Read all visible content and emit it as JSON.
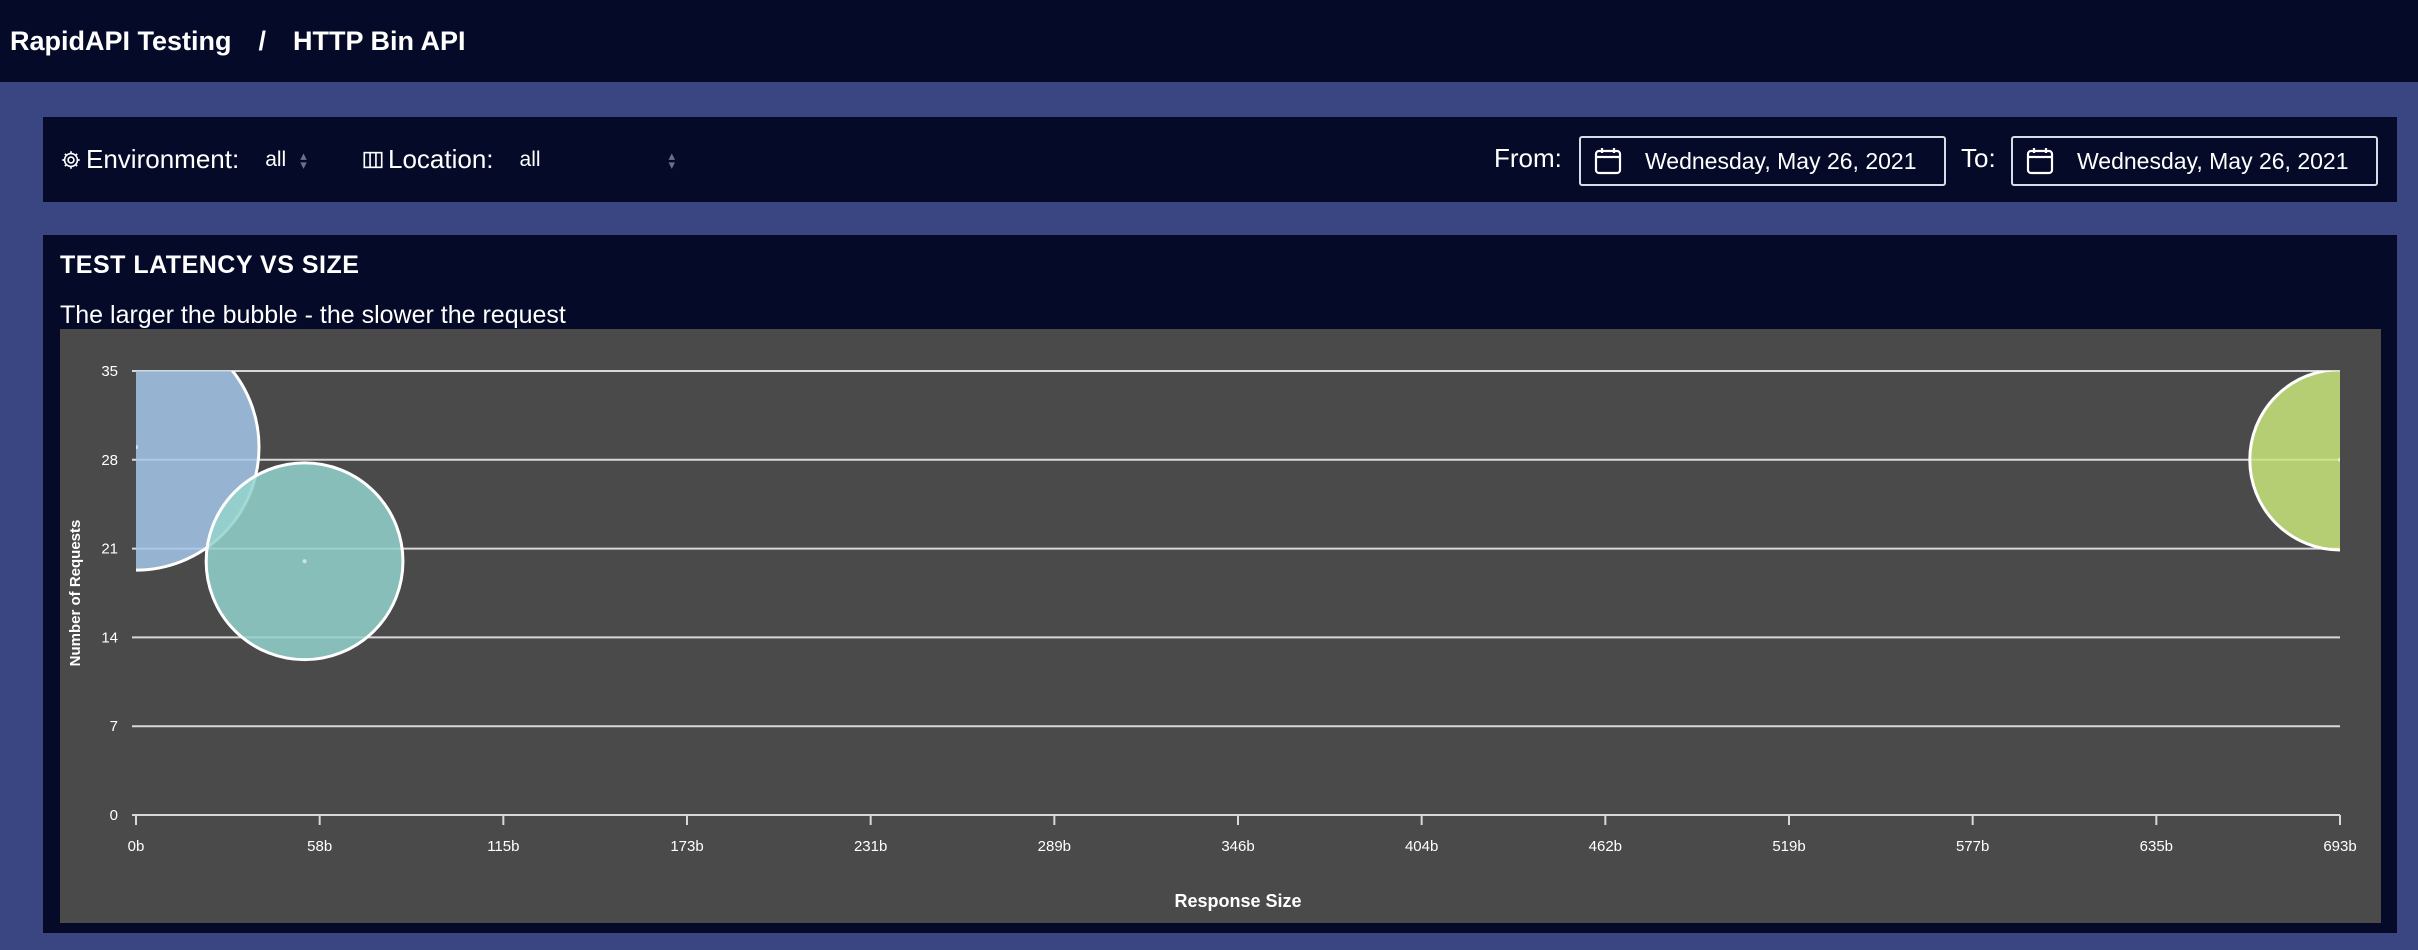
{
  "header": {
    "breadcrumb_root": "RapidAPI Testing",
    "separator": "/",
    "breadcrumb_current": "HTTP Bin API"
  },
  "filters": {
    "environment_label": "Environment:",
    "environment_value": "all",
    "environment_icon": "gear-icon",
    "location_label": "Location:",
    "location_value": "all",
    "location_icon": "map-icon",
    "from_label": "From:",
    "from_date": "Wednesday, May 26, 2021",
    "to_label": "To:",
    "to_date": "Wednesday, May 26, 2021"
  },
  "panel": {
    "title": "TEST LATENCY VS SIZE",
    "subtitle": "The larger the bubble - the slower the request"
  },
  "colors": {
    "page_bg": "#34407a",
    "bar_bg": "#050a28",
    "chart_bg": "#4a4a4a",
    "bubble_blue": "#a4c6ea",
    "bubble_teal": "#93d2cc",
    "bubble_green": "#c8e47a"
  },
  "chart_data": {
    "type": "scatter",
    "title": "",
    "xlabel": "Response Size",
    "ylabel": "Number of Requests",
    "x_ticks": [
      "0b",
      "58b",
      "115b",
      "173b",
      "231b",
      "289b",
      "346b",
      "404b",
      "462b",
      "519b",
      "577b",
      "635b",
      "693b"
    ],
    "y_ticks": [
      "0",
      "7",
      "14",
      "21",
      "28",
      "35"
    ],
    "xlim": [
      0,
      693
    ],
    "ylim": [
      0,
      35
    ],
    "grid": true,
    "series": [
      {
        "x": 0,
        "y": 29,
        "size": 30,
        "color": "#a4c6ea"
      },
      {
        "x": 53,
        "y": 20,
        "size": 24,
        "color": "#93d2cc"
      },
      {
        "x": 693,
        "y": 28,
        "size": 22,
        "color": "#c8e47a"
      }
    ]
  }
}
